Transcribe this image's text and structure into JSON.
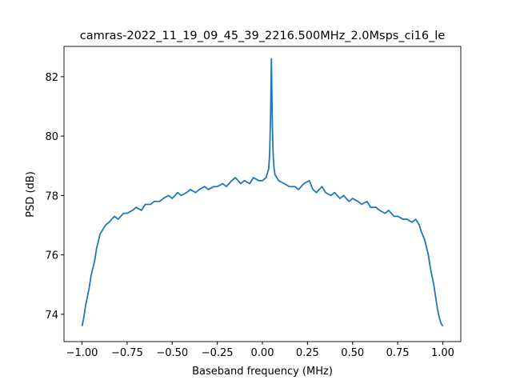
{
  "chart_data": {
    "type": "line",
    "title": "camras-2022_11_19_09_45_39_2216.500MHz_2.0Msps_ci16_le",
    "x_label": "Baseband frequency (MHz)",
    "y_label": "PSD (dB)",
    "x": [
      -1.0,
      -0.99,
      -0.98,
      -0.96,
      -0.95,
      -0.93,
      -0.92,
      -0.9,
      -0.88,
      -0.87,
      -0.85,
      -0.82,
      -0.8,
      -0.77,
      -0.75,
      -0.72,
      -0.7,
      -0.67,
      -0.65,
      -0.62,
      -0.6,
      -0.57,
      -0.55,
      -0.52,
      -0.5,
      -0.47,
      -0.45,
      -0.42,
      -0.4,
      -0.37,
      -0.35,
      -0.32,
      -0.3,
      -0.27,
      -0.25,
      -0.22,
      -0.2,
      -0.17,
      -0.15,
      -0.12,
      -0.1,
      -0.07,
      -0.05,
      -0.02,
      0.0,
      0.02,
      0.035,
      0.04,
      0.045,
      0.05,
      0.055,
      0.06,
      0.065,
      0.07,
      0.09,
      0.12,
      0.15,
      0.18,
      0.2,
      0.23,
      0.26,
      0.28,
      0.3,
      0.33,
      0.35,
      0.38,
      0.4,
      0.43,
      0.45,
      0.48,
      0.5,
      0.53,
      0.55,
      0.58,
      0.6,
      0.63,
      0.65,
      0.68,
      0.7,
      0.73,
      0.75,
      0.78,
      0.8,
      0.83,
      0.85,
      0.87,
      0.88,
      0.9,
      0.92,
      0.93,
      0.95,
      0.96,
      0.97,
      0.98,
      0.99,
      1.0
    ],
    "series": [
      {
        "color": "#1f77b4",
        "values": [
          73.6,
          73.9,
          74.3,
          74.9,
          75.3,
          75.8,
          76.2,
          76.7,
          76.9,
          77.0,
          77.1,
          77.3,
          77.2,
          77.4,
          77.4,
          77.5,
          77.6,
          77.5,
          77.7,
          77.7,
          77.8,
          77.8,
          77.9,
          78.0,
          77.9,
          78.1,
          78.0,
          78.1,
          78.2,
          78.1,
          78.2,
          78.3,
          78.2,
          78.3,
          78.3,
          78.4,
          78.3,
          78.5,
          78.6,
          78.4,
          78.5,
          78.4,
          78.6,
          78.5,
          78.5,
          78.6,
          78.9,
          79.4,
          80.6,
          82.6,
          80.4,
          79.3,
          78.9,
          78.7,
          78.5,
          78.4,
          78.3,
          78.3,
          78.2,
          78.4,
          78.5,
          78.2,
          78.1,
          78.3,
          78.1,
          78.0,
          78.1,
          77.9,
          78.0,
          77.8,
          77.9,
          77.8,
          77.7,
          77.8,
          77.6,
          77.6,
          77.5,
          77.4,
          77.5,
          77.3,
          77.3,
          77.2,
          77.2,
          77.1,
          77.2,
          77.0,
          76.8,
          76.5,
          76.0,
          75.6,
          75.0,
          74.6,
          74.2,
          73.9,
          73.7,
          73.6
        ]
      }
    ],
    "xlim": [
      -1.1,
      1.1
    ],
    "ylim": [
      73.08,
      83.02
    ],
    "xticks": [
      {
        "value": -1.0,
        "label": "−1.00"
      },
      {
        "value": -0.75,
        "label": "−0.75"
      },
      {
        "value": -0.5,
        "label": "−0.50"
      },
      {
        "value": -0.25,
        "label": "−0.25"
      },
      {
        "value": 0,
        "label": "0.00"
      },
      {
        "value": 0.25,
        "label": "0.25"
      },
      {
        "value": 0.5,
        "label": "0.50"
      },
      {
        "value": 0.75,
        "label": "0.75"
      },
      {
        "value": 1.0,
        "label": "1.00"
      }
    ],
    "yticks": [
      74,
      76,
      78,
      80,
      82
    ]
  }
}
